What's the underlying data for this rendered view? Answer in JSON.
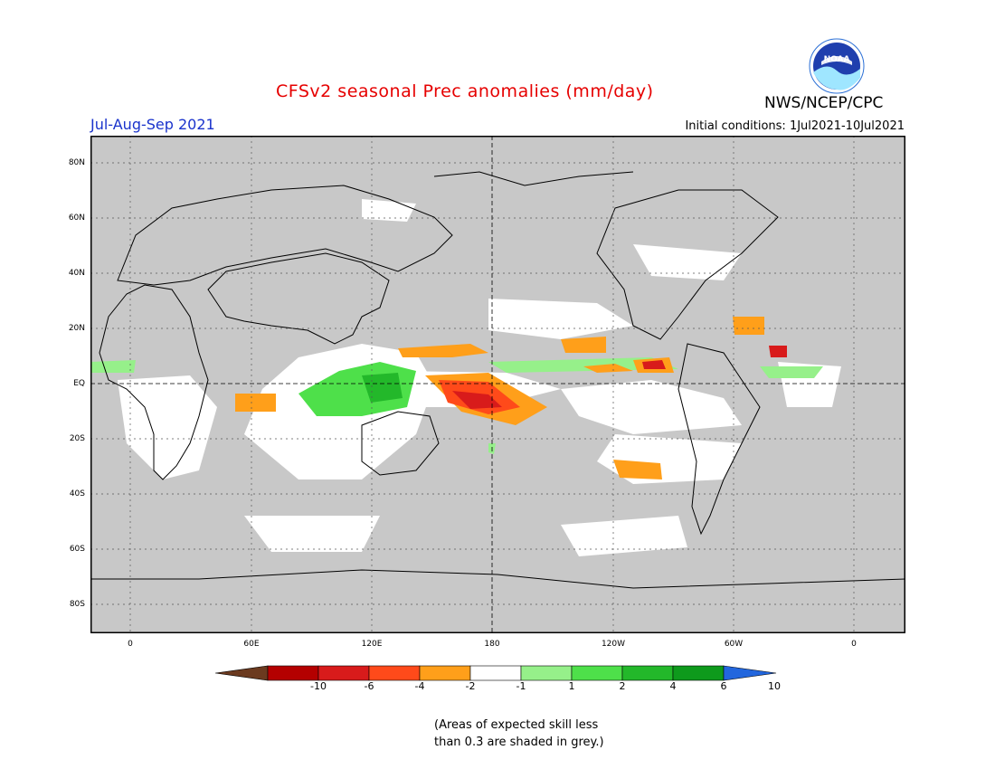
{
  "header": {
    "title": "CFSv2 seasonal Prec anomalies (mm/day)",
    "agency": "NWS/NCEP/CPC",
    "season": "Jul-Aug-Sep 2021",
    "initial_conditions": "Initial conditions: 1Jul2021-10Jul2021",
    "logo_text": "NOAA"
  },
  "map": {
    "lat_labels": [
      "80N",
      "60N",
      "40N",
      "20N",
      "EQ",
      "20S",
      "40S",
      "60S",
      "80S"
    ],
    "lon_labels": [
      "0",
      "60E",
      "120E",
      "180",
      "120W",
      "60W",
      "0"
    ],
    "background_color": "#c8c8c8"
  },
  "legend": {
    "ticks": [
      "-10",
      "-6",
      "-4",
      "-2",
      "-1",
      "1",
      "2",
      "4",
      "6",
      "10"
    ],
    "colors": [
      "#6b3a1f",
      "#b40000",
      "#d81b1b",
      "#ff4a1a",
      "#ff9f1a",
      "#ffffff",
      "#96f08a",
      "#4ee04a",
      "#23b82a",
      "#0e9a1c",
      "#2266dd"
    ]
  },
  "footnote": {
    "line1": "(Areas of expected skill less",
    "line2": "than 0.3 are shaded in grey.)"
  }
}
